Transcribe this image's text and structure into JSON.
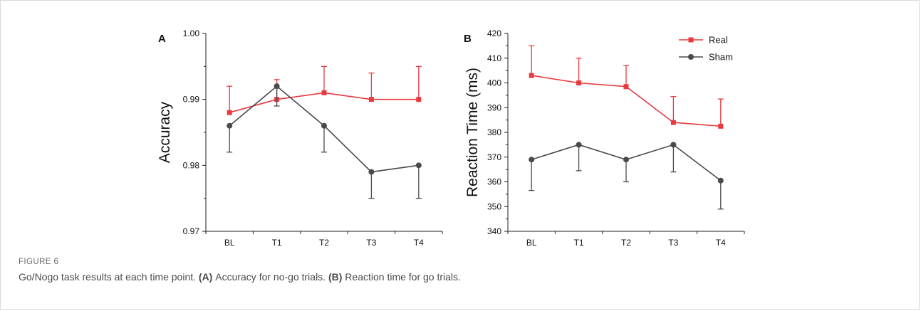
{
  "figure": {
    "label": "FIGURE 6",
    "caption_main": "Go/Nogo task results at each time point.",
    "caption_a_tag": "(A)",
    "caption_a_text": "Accuracy for no-go trials.",
    "caption_b_tag": "(B)",
    "caption_b_text": "Reaction time for go trials."
  },
  "colors": {
    "real": "#e8393f",
    "sham": "#4a4a4a"
  },
  "chart_data": [
    {
      "panel": "A",
      "type": "line",
      "ylabel": "Accuracy",
      "categories": [
        "BL",
        "T1",
        "T2",
        "T3",
        "T4"
      ],
      "ylim": [
        0.97,
        1.0
      ],
      "yticks": [
        0.97,
        0.98,
        0.99,
        1.0
      ],
      "yticklabels": [
        "0.97",
        "0.98",
        "0.99",
        "1.00"
      ],
      "grid": false,
      "series": [
        {
          "name": "Real",
          "values": [
            0.988,
            0.99,
            0.991,
            0.99,
            0.99
          ],
          "errors": [
            0.004,
            0.003,
            0.004,
            0.004,
            0.005
          ],
          "error_direction": "up",
          "marker": "square"
        },
        {
          "name": "Sham",
          "values": [
            0.986,
            0.992,
            0.986,
            0.979,
            0.98
          ],
          "errors": [
            0.004,
            0.003,
            0.004,
            0.004,
            0.005
          ],
          "error_direction": "down",
          "marker": "circle"
        }
      ]
    },
    {
      "panel": "B",
      "type": "line",
      "ylabel": "Reaction Time (ms)",
      "categories": [
        "BL",
        "T1",
        "T2",
        "T3",
        "T4"
      ],
      "ylim": [
        340,
        420
      ],
      "yticks": [
        340,
        350,
        360,
        370,
        380,
        390,
        400,
        410,
        420
      ],
      "yticklabels": [
        "340",
        "350",
        "360",
        "370",
        "380",
        "390",
        "400",
        "410",
        "420"
      ],
      "grid": false,
      "legend_position": "top-right",
      "series": [
        {
          "name": "Real",
          "values": [
            403,
            400,
            398.5,
            384,
            382.5
          ],
          "errors": [
            12,
            10,
            8.5,
            10.5,
            11
          ],
          "error_direction": "up",
          "marker": "square"
        },
        {
          "name": "Sham",
          "values": [
            369,
            375,
            369,
            375,
            360.5
          ],
          "errors": [
            12.5,
            10.5,
            9,
            11,
            11.5
          ],
          "error_direction": "down",
          "marker": "circle"
        }
      ]
    }
  ]
}
